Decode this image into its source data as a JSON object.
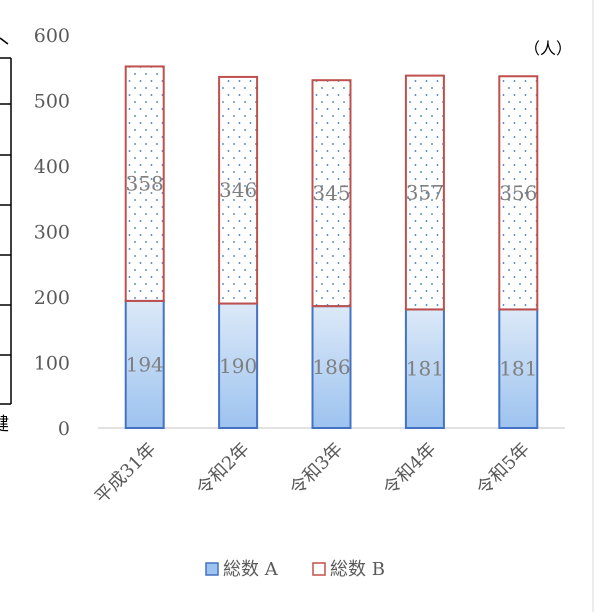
{
  "chart_data": {
    "type": "bar",
    "stacked": true,
    "categories": [
      "平成31年",
      "令和2年",
      "令和3年",
      "令和4年",
      "令和5年"
    ],
    "series": [
      {
        "name": "総数 A",
        "values": [
          194,
          190,
          186,
          181,
          181
        ],
        "fill": "#bdd7ee",
        "stroke": "#4472c4"
      },
      {
        "name": "総数 B",
        "values": [
          358,
          346,
          345,
          357,
          356
        ],
        "fill": "#ffffff",
        "stroke": "#c0504d",
        "pattern": "dots"
      }
    ],
    "ylim": [
      0,
      600
    ],
    "yticks": [
      0,
      100,
      200,
      300,
      400,
      500,
      600
    ],
    "unit_label": "（人）",
    "legend_position": "bottom",
    "grid": false,
    "left_fragment_text": "健"
  }
}
